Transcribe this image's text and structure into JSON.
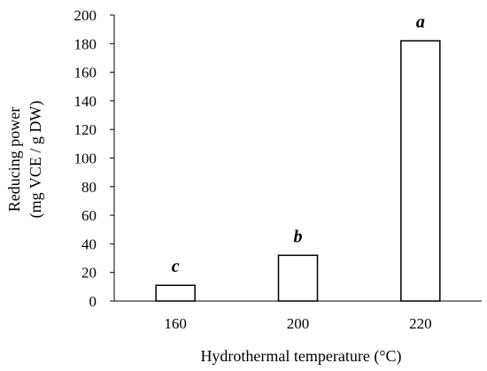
{
  "chart_data": {
    "type": "bar",
    "categories": [
      "160",
      "200",
      "220"
    ],
    "values": [
      11,
      32,
      182
    ],
    "annotations": [
      "c",
      "b",
      "a"
    ],
    "xlabel": "Hydrothermal temperature (°C)",
    "ylabel_lines": [
      "Reducing power",
      "(mg VCE / g DW)"
    ],
    "ylim": [
      0,
      200
    ],
    "yticks": [
      "0",
      "20",
      "40",
      "60",
      "80",
      "100",
      "120",
      "140",
      "160",
      "180",
      "200"
    ],
    "grid": false,
    "legend": "none"
  }
}
